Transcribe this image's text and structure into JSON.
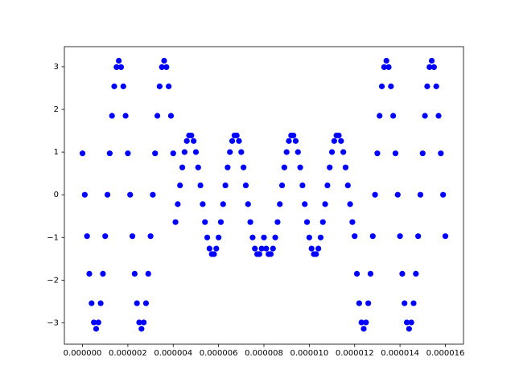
{
  "chart_data": {
    "type": "scatter",
    "color": "#0000ff",
    "x": [
      0,
      1e-07,
      2e-07,
      3e-07,
      4e-07,
      5e-07,
      6e-07,
      7e-07,
      8e-07,
      9e-07,
      1e-06,
      1.1e-06,
      1.2e-06,
      1.3e-06,
      1.4e-06,
      1.5e-06,
      1.6e-06,
      1.7e-06,
      1.8e-06,
      1.9e-06,
      2e-06,
      2.1e-06,
      2.2e-06,
      2.3e-06,
      2.4e-06,
      2.5e-06,
      2.6e-06,
      2.7e-06,
      2.8e-06,
      2.9e-06,
      3e-06,
      3.1e-06,
      3.2e-06,
      3.3e-06,
      3.4e-06,
      3.5e-06,
      3.6e-06,
      3.7e-06,
      3.8e-06,
      3.9e-06,
      4e-06,
      4.1e-06,
      4.2e-06,
      4.3e-06,
      4.4e-06,
      4.5e-06,
      4.6e-06,
      4.7e-06,
      4.8e-06,
      4.9e-06,
      5e-06,
      5.1e-06,
      5.2e-06,
      5.3e-06,
      5.4e-06,
      5.5e-06,
      5.6e-06,
      5.7e-06,
      5.8e-06,
      5.9e-06,
      6e-06,
      6.1e-06,
      6.2e-06,
      6.3e-06,
      6.4e-06,
      6.5e-06,
      6.6e-06,
      6.7e-06,
      6.8e-06,
      6.9e-06,
      7e-06,
      7.1e-06,
      7.2e-06,
      7.3e-06,
      7.4e-06,
      7.5e-06,
      7.6e-06,
      7.7e-06,
      7.8e-06,
      7.9e-06,
      8e-06,
      8.1e-06,
      8.2e-06,
      8.3e-06,
      8.4e-06,
      8.5e-06,
      8.6e-06,
      8.7e-06,
      8.8e-06,
      8.9e-06,
      9e-06,
      9.1e-06,
      9.2e-06,
      9.3e-06,
      9.4e-06,
      9.5e-06,
      9.6e-06,
      9.7e-06,
      9.8e-06,
      9.9e-06,
      1e-05,
      1.01e-05,
      1.02e-05,
      1.03e-05,
      1.04e-05,
      1.05e-05,
      1.06e-05,
      1.07e-05,
      1.08e-05,
      1.09e-05,
      1.1e-05,
      1.11e-05,
      1.12e-05,
      1.13e-05,
      1.14e-05,
      1.15e-05,
      1.16e-05,
      1.17e-05,
      1.18e-05,
      1.19e-05,
      1.2e-05,
      1.21e-05,
      1.22e-05,
      1.23e-05,
      1.24e-05,
      1.25e-05,
      1.26e-05,
      1.27e-05,
      1.28e-05,
      1.29e-05,
      1.3e-05,
      1.31e-05,
      1.32e-05,
      1.33e-05,
      1.34e-05,
      1.35e-05,
      1.36e-05,
      1.37e-05,
      1.38e-05,
      1.39e-05,
      1.4e-05,
      1.41e-05,
      1.42e-05,
      1.43e-05,
      1.44e-05,
      1.45e-05,
      1.46e-05,
      1.47e-05,
      1.48e-05,
      1.49e-05,
      1.5e-05,
      1.51e-05,
      1.52e-05,
      1.53e-05,
      1.54e-05,
      1.55e-05,
      1.56e-05,
      1.57e-05,
      1.58e-05,
      1.59e-05,
      1.6e-05
    ],
    "values": [
      0.97,
      0,
      -0.97,
      -1.85,
      -2.54,
      -2.99,
      -3.14,
      -2.99,
      -2.54,
      -1.85,
      -0.97,
      0,
      0.97,
      1.85,
      2.54,
      2.99,
      3.14,
      2.99,
      2.54,
      1.85,
      0.97,
      0,
      -0.97,
      -1.85,
      -2.54,
      -2.99,
      -3.14,
      -2.99,
      -2.54,
      -1.85,
      -0.97,
      0,
      0.97,
      1.85,
      2.54,
      2.99,
      3.14,
      2.99,
      2.54,
      1.85,
      0.97,
      -0.64,
      -0.22,
      0.22,
      0.64,
      1.0,
      1.26,
      1.39,
      1.39,
      1.26,
      1.0,
      0.64,
      0.22,
      -0.22,
      -0.64,
      -1.0,
      -1.26,
      -1.39,
      -1.39,
      -1.26,
      -1.0,
      -0.64,
      -0.22,
      0.22,
      0.64,
      1.0,
      1.26,
      1.39,
      1.39,
      1.26,
      1.0,
      0.64,
      0.22,
      -0.22,
      -0.64,
      -1.0,
      -1.26,
      -1.39,
      -1.39,
      -1.26,
      -1.0,
      -1.26,
      -1.39,
      -1.39,
      -1.26,
      -1.0,
      -0.64,
      -0.22,
      0.22,
      0.64,
      1.0,
      1.26,
      1.39,
      1.39,
      1.26,
      1.0,
      0.64,
      0.22,
      -0.22,
      -0.64,
      -1.0,
      -1.26,
      -1.39,
      -1.39,
      -1.26,
      -1.0,
      -0.64,
      -0.22,
      0.22,
      0.64,
      1.0,
      1.26,
      1.39,
      1.39,
      1.26,
      1.0,
      0.64,
      0.22,
      -0.22,
      -0.64,
      -0.97,
      -1.85,
      -2.54,
      -2.99,
      -3.14,
      -2.99,
      -2.54,
      -1.85,
      -0.97,
      0,
      0.97,
      1.85,
      2.54,
      2.99,
      3.14,
      2.99,
      2.54,
      1.85,
      0.97,
      0,
      -0.97,
      -1.85,
      -2.54,
      -2.99,
      -3.14,
      -2.99,
      -2.54,
      -1.85,
      -0.97,
      0,
      0.97,
      1.85,
      2.54,
      2.99,
      3.14,
      2.99,
      2.54,
      1.85,
      0.97,
      0,
      -0.97
    ],
    "xlim": [
      -8e-07,
      1.68e-05
    ],
    "xticks": [
      {
        "value": 0,
        "label": "0.000000"
      },
      {
        "value": 2e-06,
        "label": "0.000002"
      },
      {
        "value": 4e-06,
        "label": "0.000004"
      },
      {
        "value": 6e-06,
        "label": "0.000006"
      },
      {
        "value": 8e-06,
        "label": "0.000008"
      },
      {
        "value": 1e-05,
        "label": "0.000010"
      },
      {
        "value": 1.2e-05,
        "label": "0.000012"
      },
      {
        "value": 1.4e-05,
        "label": "0.000014"
      },
      {
        "value": 1.6e-05,
        "label": "0.000016"
      }
    ],
    "ylim": [
      -3.5,
      3.47
    ],
    "yticks": [
      {
        "value": -3,
        "label": "−3"
      },
      {
        "value": -2,
        "label": "−2"
      },
      {
        "value": -1,
        "label": "−1"
      },
      0,
      1,
      2,
      3
    ]
  }
}
